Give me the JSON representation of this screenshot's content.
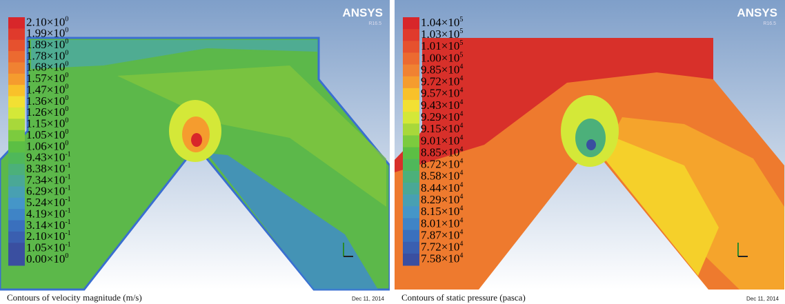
{
  "panels": [
    {
      "brand": "ANSYS",
      "version": "R16.5",
      "date": "Dec 11, 2014",
      "caption": "Contours of velocity magnitude (m/s)",
      "legend": [
        {
          "base": "2.10×10",
          "exp": "0"
        },
        {
          "base": "1.99×10",
          "exp": "0"
        },
        {
          "base": "1.89×10",
          "exp": "0"
        },
        {
          "base": "1.78×10",
          "exp": "0"
        },
        {
          "base": "1.68×10",
          "exp": "0"
        },
        {
          "base": "1.57×10",
          "exp": "0"
        },
        {
          "base": "1.47×10",
          "exp": "0"
        },
        {
          "base": "1.36×10",
          "exp": "0"
        },
        {
          "base": "1.26×10",
          "exp": "0"
        },
        {
          "base": "1.15×10",
          "exp": "0"
        },
        {
          "base": "1.05×10",
          "exp": "0"
        },
        {
          "base": "1.06×10",
          "exp": "0"
        },
        {
          "base": "9.43×10",
          "exp": "-1"
        },
        {
          "base": "8.38×10",
          "exp": "-1"
        },
        {
          "base": "7.34×10",
          "exp": "-1"
        },
        {
          "base": "6.29×10",
          "exp": "-1"
        },
        {
          "base": "5.24×10",
          "exp": "-1"
        },
        {
          "base": "4.19×10",
          "exp": "-1"
        },
        {
          "base": "3.14×10",
          "exp": "-1"
        },
        {
          "base": "2.10×10",
          "exp": "-1"
        },
        {
          "base": "1.05×10",
          "exp": "-1"
        },
        {
          "base": "0.00×10",
          "exp": "0"
        }
      ]
    },
    {
      "brand": "ANSYS",
      "version": "R16.5",
      "date": "Dec 11, 2014",
      "caption": "Contours of static pressure (pasca)",
      "legend": [
        {
          "base": "1.04×10",
          "exp": "5"
        },
        {
          "base": "1.03×10",
          "exp": "5"
        },
        {
          "base": "1.01×10",
          "exp": "5"
        },
        {
          "base": "1.00×10",
          "exp": "5"
        },
        {
          "base": "9.85×10",
          "exp": "4"
        },
        {
          "base": "9.72×10",
          "exp": "4"
        },
        {
          "base": "9.57×10",
          "exp": "4"
        },
        {
          "base": "9.43×10",
          "exp": "4"
        },
        {
          "base": "9.29×10",
          "exp": "4"
        },
        {
          "base": "9.15×10",
          "exp": "4"
        },
        {
          "base": "9.01×10",
          "exp": "4"
        },
        {
          "base": "8.85×10",
          "exp": "4"
        },
        {
          "base": "8.72×10",
          "exp": "4"
        },
        {
          "base": "8.58×10",
          "exp": "4"
        },
        {
          "base": "8.44×10",
          "exp": "4"
        },
        {
          "base": "8.29×10",
          "exp": "4"
        },
        {
          "base": "8.15×10",
          "exp": "4"
        },
        {
          "base": "8.01×10",
          "exp": "4"
        },
        {
          "base": "7.87×10",
          "exp": "4"
        },
        {
          "base": "7.72×10",
          "exp": "4"
        },
        {
          "base": "7.58×10",
          "exp": "4"
        }
      ]
    }
  ]
}
